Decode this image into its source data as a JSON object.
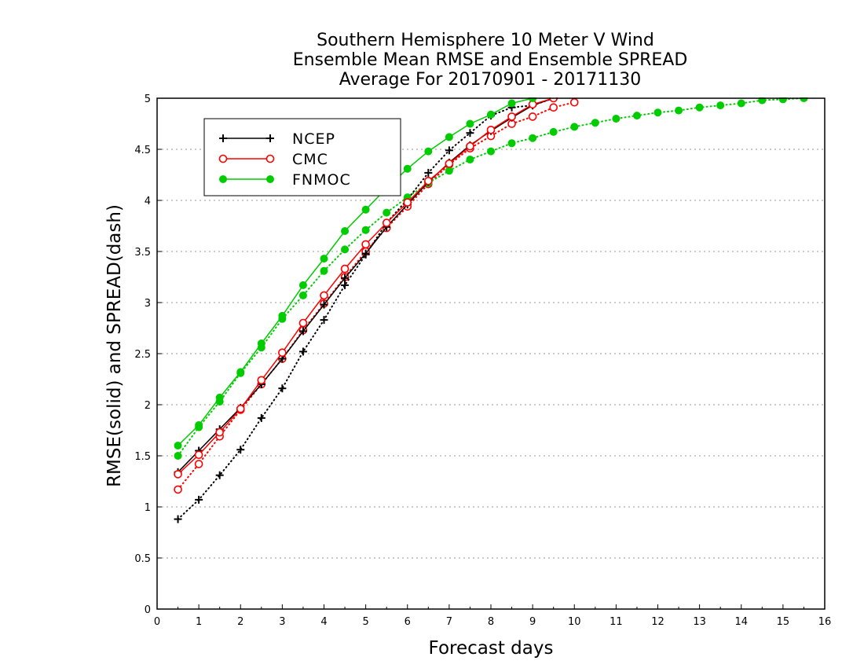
{
  "chart_data": {
    "type": "line",
    "title": [
      "Southern Hemisphere 10 Meter V Wind",
      "Ensemble Mean RMSE and Ensemble SPREAD",
      "Average For 20170901 - 20171130"
    ],
    "xlabel": "Forecast days",
    "ylabel": "RMSE(solid) and SPREAD(dash)",
    "xlim": [
      0,
      16
    ],
    "ylim": [
      0,
      5
    ],
    "xticks": [
      "0",
      "1",
      "2",
      "3",
      "4",
      "5",
      "6",
      "7",
      "8",
      "9",
      "10",
      "11",
      "12",
      "13",
      "14",
      "15",
      "16"
    ],
    "yticks": [
      "0",
      "0.5",
      "1",
      "1.5",
      "2",
      "2.5",
      "3",
      "3.5",
      "4",
      "4.5",
      "5"
    ],
    "grid": "horizontal dotted",
    "legend_position": "top-left",
    "series": [
      {
        "name": "NCEP",
        "metric": "RMSE",
        "style": "solid",
        "marker": "plus",
        "color": "#000000",
        "x": [
          0.5,
          1,
          1.5,
          2,
          2.5,
          3,
          3.5,
          4,
          4.5,
          5,
          5.5,
          6,
          6.5,
          7,
          7.5,
          8,
          8.5,
          9,
          9.5
        ],
        "y": [
          1.34,
          1.55,
          1.76,
          1.97,
          2.2,
          2.45,
          2.72,
          2.98,
          3.24,
          3.48,
          3.74,
          3.96,
          4.18,
          4.37,
          4.54,
          4.68,
          4.81,
          4.93,
          5.0
        ]
      },
      {
        "name": "NCEP",
        "metric": "SPREAD",
        "style": "dotted",
        "marker": "plus",
        "color": "#000000",
        "x": [
          0.5,
          1,
          1.5,
          2,
          2.5,
          3,
          3.5,
          4,
          4.5,
          5,
          5.5,
          6,
          6.5,
          7,
          7.5,
          8,
          8.5,
          9,
          9.5
        ],
        "y": [
          0.88,
          1.07,
          1.31,
          1.56,
          1.87,
          2.16,
          2.52,
          2.83,
          3.17,
          3.47,
          3.78,
          4.01,
          4.27,
          4.49,
          4.66,
          4.83,
          4.91,
          4.93,
          5.0
        ]
      },
      {
        "name": "CMC",
        "metric": "RMSE",
        "style": "solid",
        "marker": "open-circle",
        "color": "#ff0000",
        "x": [
          0.5,
          1,
          1.5,
          2,
          2.5,
          3,
          3.5,
          4,
          4.5,
          5,
          5.5,
          6,
          6.5,
          7,
          7.5,
          8,
          8.5,
          9,
          9.5
        ],
        "y": [
          1.32,
          1.51,
          1.73,
          1.96,
          2.24,
          2.51,
          2.8,
          3.07,
          3.33,
          3.57,
          3.78,
          3.98,
          4.19,
          4.36,
          4.53,
          4.69,
          4.82,
          4.94,
          5.0
        ]
      },
      {
        "name": "CMC",
        "metric": "SPREAD",
        "style": "dotted",
        "marker": "open-circle",
        "color": "#ff0000",
        "x": [
          0.5,
          1,
          1.5,
          2,
          2.5,
          3,
          3.5,
          4,
          4.5,
          5,
          5.5,
          6,
          6.5,
          7,
          7.5,
          8,
          8.5,
          9,
          9.5,
          10
        ],
        "y": [
          1.17,
          1.42,
          1.69,
          1.95,
          2.2,
          2.45,
          2.73,
          2.99,
          3.25,
          3.5,
          3.73,
          3.94,
          4.16,
          4.35,
          4.51,
          4.63,
          4.75,
          4.82,
          4.91,
          4.96
        ]
      },
      {
        "name": "FNMOC",
        "metric": "RMSE",
        "style": "solid",
        "marker": "filled-circle",
        "color": "#00cc00",
        "x": [
          0.5,
          1,
          1.5,
          2,
          2.5,
          3,
          3.5,
          4,
          4.5,
          5,
          5.5,
          6,
          6.5,
          7,
          7.5,
          8,
          8.5,
          9
        ],
        "y": [
          1.6,
          1.8,
          2.07,
          2.32,
          2.6,
          2.87,
          3.17,
          3.43,
          3.7,
          3.91,
          4.12,
          4.31,
          4.48,
          4.62,
          4.75,
          4.84,
          4.95,
          5.0
        ]
      },
      {
        "name": "FNMOC",
        "metric": "SPREAD",
        "style": "dotted",
        "marker": "filled-circle",
        "color": "#00cc00",
        "x": [
          0.5,
          1,
          1.5,
          2,
          2.5,
          3,
          3.5,
          4,
          4.5,
          5,
          5.5,
          6,
          6.5,
          7,
          7.5,
          8,
          8.5,
          9,
          9.5,
          10,
          10.5,
          11,
          11.5,
          12,
          12.5,
          13,
          13.5,
          14,
          14.5,
          15,
          15.5
        ],
        "y": [
          1.5,
          1.78,
          2.03,
          2.31,
          2.56,
          2.84,
          3.07,
          3.31,
          3.52,
          3.71,
          3.88,
          4.03,
          4.17,
          4.29,
          4.4,
          4.48,
          4.56,
          4.61,
          4.67,
          4.72,
          4.76,
          4.8,
          4.83,
          4.86,
          4.88,
          4.91,
          4.93,
          4.95,
          4.98,
          4.99,
          5.0
        ]
      }
    ],
    "legend": [
      {
        "name": "NCEP",
        "color": "#000000",
        "marker": "plus"
      },
      {
        "name": "CMC",
        "color": "#ff0000",
        "marker": "open-circle"
      },
      {
        "name": "FNMOC",
        "color": "#00cc00",
        "marker": "filled-circle"
      }
    ]
  }
}
